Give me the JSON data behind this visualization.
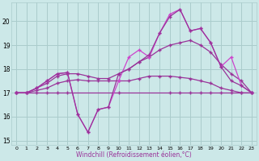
{
  "bg_color": "#cce8e8",
  "grid_color": "#aacccc",
  "line_color": "#993399",
  "line_color2": "#cc44cc",
  "xlabel": "Windchill (Refroidissement éolien,°C)",
  "xlim": [
    -0.5,
    23.5
  ],
  "ylim": [
    14.8,
    20.8
  ],
  "yticks": [
    15,
    16,
    17,
    18,
    19,
    20
  ],
  "xticks": [
    0,
    1,
    2,
    3,
    4,
    5,
    6,
    7,
    8,
    9,
    10,
    11,
    12,
    13,
    14,
    15,
    16,
    17,
    18,
    19,
    20,
    21,
    22,
    23
  ],
  "s1_x": [
    0,
    1,
    2,
    3,
    4,
    5,
    10,
    15,
    16,
    17,
    18,
    19,
    20,
    21,
    22,
    23
  ],
  "s1_y": [
    17.0,
    17.0,
    17.0,
    17.0,
    17.0,
    17.0,
    17.0,
    17.0,
    17.0,
    17.0,
    17.0,
    17.0,
    17.0,
    17.0,
    17.0,
    17.0
  ],
  "s2_x": [
    0,
    1,
    2,
    3,
    4,
    5,
    6,
    7,
    8,
    9,
    10,
    11,
    12,
    13,
    14,
    15,
    16,
    17,
    18,
    19,
    20,
    21,
    22,
    23
  ],
  "s2_y": [
    17.0,
    17.0,
    17.1,
    17.2,
    17.4,
    17.5,
    17.55,
    17.5,
    17.5,
    17.5,
    17.5,
    17.5,
    17.6,
    17.7,
    17.7,
    17.7,
    17.65,
    17.6,
    17.5,
    17.4,
    17.2,
    17.1,
    17.0,
    17.0
  ],
  "s3_x": [
    0,
    1,
    2,
    3,
    4,
    5,
    6,
    7,
    8,
    9,
    10,
    11,
    12,
    13,
    14,
    15,
    16,
    17,
    18,
    19,
    20,
    21,
    22,
    23
  ],
  "s3_y": [
    17.0,
    17.0,
    17.2,
    17.4,
    17.7,
    17.8,
    17.8,
    17.7,
    17.6,
    17.6,
    17.8,
    18.0,
    18.3,
    18.5,
    18.8,
    19.0,
    19.1,
    19.2,
    19.0,
    18.7,
    18.2,
    17.8,
    17.5,
    17.0
  ],
  "s4_x": [
    0,
    1,
    2,
    3,
    4,
    5,
    6,
    7,
    8,
    9,
    10,
    11,
    12,
    13,
    14,
    15,
    16,
    17,
    18,
    19,
    20,
    21,
    22,
    23
  ],
  "s4_y": [
    17.0,
    17.0,
    17.2,
    17.5,
    17.8,
    17.85,
    16.1,
    15.35,
    16.3,
    16.4,
    17.5,
    18.5,
    18.8,
    18.5,
    19.5,
    20.3,
    20.5,
    19.6,
    19.7,
    19.1,
    18.1,
    18.5,
    17.3,
    17.0
  ],
  "s5_x": [
    0,
    1,
    2,
    3,
    4,
    5,
    6,
    7,
    8,
    9,
    10,
    11,
    12,
    13,
    14,
    15,
    16,
    17,
    18,
    19,
    20,
    21,
    22,
    23
  ],
  "s5_y": [
    17.0,
    17.0,
    17.2,
    17.5,
    17.8,
    17.85,
    16.1,
    15.35,
    16.3,
    16.4,
    17.8,
    18.0,
    18.3,
    18.6,
    19.5,
    20.2,
    20.5,
    19.6,
    19.7,
    19.1,
    18.1,
    17.5,
    17.3,
    17.0
  ]
}
